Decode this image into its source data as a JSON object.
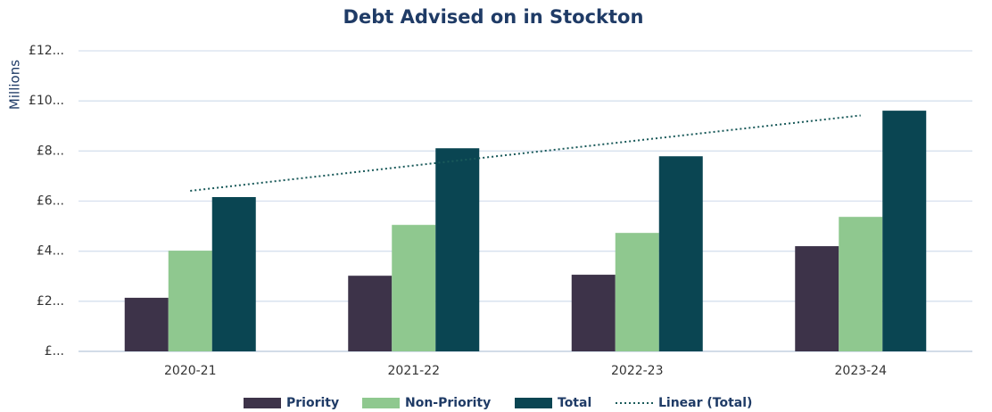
{
  "chart_data": {
    "type": "bar",
    "title": "Debt Advised on in Stockton",
    "y_label": "Millions",
    "categories": [
      "2020-21",
      "2021-22",
      "2022-23",
      "2023-24"
    ],
    "series": [
      {
        "name": "Priority",
        "color": "#3d3349",
        "values": [
          2.14,
          3.02,
          3.06,
          4.2
        ]
      },
      {
        "name": "Non-Priority",
        "color": "#8fc88f",
        "values": [
          4.02,
          5.05,
          4.73,
          5.37
        ]
      },
      {
        "name": "Total",
        "color": "#0a4552",
        "values": [
          6.16,
          8.11,
          7.79,
          9.61
        ]
      },
      {
        "name": "Linear (Total)",
        "color": "#1a5a5a",
        "type": "line",
        "dash": "dotted",
        "values": [
          6.41,
          7.42,
          8.42,
          9.42
        ]
      }
    ],
    "ylim": [
      0,
      12
    ],
    "yticks": [
      {
        "value": 0,
        "label": "£..."
      },
      {
        "value": 2,
        "label": "£2..."
      },
      {
        "value": 4,
        "label": "£4..."
      },
      {
        "value": 6,
        "label": "£6..."
      },
      {
        "value": 8,
        "label": "£8..."
      },
      {
        "value": 10,
        "label": "£10..."
      },
      {
        "value": 12,
        "label": "£12..."
      }
    ],
    "grid": true,
    "legend": "bottom"
  }
}
